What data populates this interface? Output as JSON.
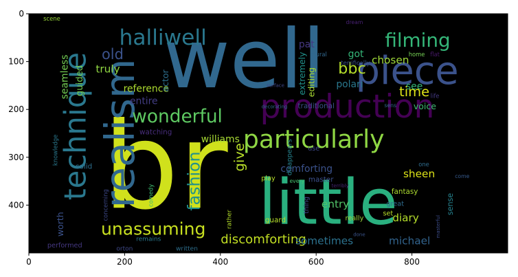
{
  "chart_data": {
    "type": "image",
    "render": "wordcloud",
    "background_color": "#000000",
    "x_range": [
      0,
      1000
    ],
    "y_range": [
      0,
      500
    ],
    "x_ticks": [
      0,
      200,
      400,
      600,
      800
    ],
    "y_ticks": [
      0,
      100,
      200,
      300,
      400
    ],
    "x_tick_labels": [
      "0",
      "200",
      "400",
      "600",
      "800"
    ],
    "y_tick_labels": [
      "0",
      "100",
      "200",
      "300",
      "400"
    ],
    "words": [
      {
        "text": "well",
        "x": 450,
        "y": 95,
        "size": 170,
        "color": "#31688e",
        "rotate": 0
      },
      {
        "text": "br",
        "x": 285,
        "y": 320,
        "size": 250,
        "color": "#d0e11c",
        "rotate": 0
      },
      {
        "text": "little",
        "x": 625,
        "y": 395,
        "size": 130,
        "color": "#2ab07f",
        "rotate": 0
      },
      {
        "text": "production",
        "x": 665,
        "y": 195,
        "size": 68,
        "color": "#440154",
        "rotate": 0
      },
      {
        "text": "piece",
        "x": 790,
        "y": 120,
        "size": 80,
        "color": "#3b528b",
        "rotate": 0
      },
      {
        "text": "particularly",
        "x": 595,
        "y": 262,
        "size": 52,
        "color": "#8fd744",
        "rotate": 0
      },
      {
        "text": "realism",
        "x": 190,
        "y": 250,
        "size": 85,
        "color": "#31688e",
        "rotate": -90
      },
      {
        "text": "technique",
        "x": 98,
        "y": 235,
        "size": 62,
        "color": "#2a788e",
        "rotate": -90
      },
      {
        "text": "halliwell",
        "x": 280,
        "y": 50,
        "size": 45,
        "color": "#2a788e",
        "rotate": 0
      },
      {
        "text": "filming",
        "x": 812,
        "y": 55,
        "size": 40,
        "color": "#35b779",
        "rotate": 0
      },
      {
        "text": "wonderful",
        "x": 310,
        "y": 215,
        "size": 38,
        "color": "#5ec962",
        "rotate": 0
      },
      {
        "text": "unassuming",
        "x": 260,
        "y": 450,
        "size": 36,
        "color": "#c8e020",
        "rotate": 0
      },
      {
        "text": "discomforting",
        "x": 490,
        "y": 472,
        "size": 26,
        "color": "#c2df23",
        "rotate": 0
      },
      {
        "text": "fashion",
        "x": 345,
        "y": 350,
        "size": 34,
        "color": "#21918c",
        "rotate": -90
      },
      {
        "text": "old",
        "x": 175,
        "y": 85,
        "size": 30,
        "color": "#3b528b",
        "rotate": 0
      },
      {
        "text": "bbc",
        "x": 675,
        "y": 115,
        "size": 32,
        "color": "#b5de2b",
        "rotate": 0
      },
      {
        "text": "time",
        "x": 805,
        "y": 163,
        "size": 28,
        "color": "#dde318",
        "rotate": 0
      },
      {
        "text": "chosen",
        "x": 755,
        "y": 97,
        "size": 22,
        "color": "#a0da39",
        "rotate": 0
      },
      {
        "text": "reference",
        "x": 245,
        "y": 157,
        "size": 20,
        "color": "#addc30",
        "rotate": 0
      },
      {
        "text": "truly",
        "x": 165,
        "y": 116,
        "size": 22,
        "color": "#90d743",
        "rotate": 0
      },
      {
        "text": "guided",
        "x": 107,
        "y": 140,
        "size": 19,
        "color": "#75d054",
        "rotate": -90
      },
      {
        "text": "seamless",
        "x": 75,
        "y": 132,
        "size": 20,
        "color": "#75d054",
        "rotate": -90
      },
      {
        "text": "actor",
        "x": 285,
        "y": 140,
        "size": 18,
        "color": "#2e6f8e",
        "rotate": -90
      },
      {
        "text": "entire",
        "x": 240,
        "y": 183,
        "size": 20,
        "color": "#433e85",
        "rotate": 0
      },
      {
        "text": "williams",
        "x": 400,
        "y": 263,
        "size": 20,
        "color": "#a8db34",
        "rotate": 0
      },
      {
        "text": "watching",
        "x": 265,
        "y": 248,
        "size": 15,
        "color": "#472d7b",
        "rotate": 0
      },
      {
        "text": "give",
        "x": 440,
        "y": 300,
        "size": 28,
        "color": "#b8de29",
        "rotate": -90
      },
      {
        "text": "comforting",
        "x": 580,
        "y": 325,
        "size": 20,
        "color": "#3b528b",
        "rotate": 0
      },
      {
        "text": "sheen",
        "x": 815,
        "y": 335,
        "size": 22,
        "color": "#dde318",
        "rotate": 0
      },
      {
        "text": "sense",
        "x": 880,
        "y": 398,
        "size": 16,
        "color": "#26828e",
        "rotate": -90
      },
      {
        "text": "fantasy",
        "x": 785,
        "y": 372,
        "size": 15,
        "color": "#addc30",
        "rotate": 0
      },
      {
        "text": "entry",
        "x": 640,
        "y": 398,
        "size": 22,
        "color": "#52c569",
        "rotate": 0
      },
      {
        "text": "diary",
        "x": 787,
        "y": 427,
        "size": 22,
        "color": "#b5de2b",
        "rotate": 0
      },
      {
        "text": "sometimes",
        "x": 617,
        "y": 475,
        "size": 22,
        "color": "#2c728e",
        "rotate": 0
      },
      {
        "text": "michael",
        "x": 795,
        "y": 475,
        "size": 22,
        "color": "#32648e",
        "rotate": 0
      },
      {
        "text": "voice",
        "x": 827,
        "y": 193,
        "size": 18,
        "color": "#3fbc73",
        "rotate": 0
      },
      {
        "text": "see",
        "x": 805,
        "y": 152,
        "size": 20,
        "color": "#35b779",
        "rotate": 0
      },
      {
        "text": "polari",
        "x": 670,
        "y": 148,
        "size": 20,
        "color": "#2a788e",
        "rotate": 0
      },
      {
        "text": "got",
        "x": 683,
        "y": 85,
        "size": 20,
        "color": "#35b779",
        "rotate": 0
      },
      {
        "text": "pat",
        "x": 580,
        "y": 65,
        "size": 20,
        "color": "#453882",
        "rotate": 0
      },
      {
        "text": "extremely",
        "x": 570,
        "y": 125,
        "size": 18,
        "color": "#21918c",
        "rotate": -90
      },
      {
        "text": "editing",
        "x": 590,
        "y": 143,
        "size": 18,
        "color": "#aadc32",
        "rotate": -90
      },
      {
        "text": "mural",
        "x": 605,
        "y": 85,
        "size": 12,
        "color": "#31688e",
        "rotate": 0
      },
      {
        "text": "terrifically",
        "x": 682,
        "y": 103,
        "size": 12,
        "color": "#3b528b",
        "rotate": 0
      },
      {
        "text": "home",
        "x": 810,
        "y": 85,
        "size": 12,
        "color": "#75d054",
        "rotate": 0
      },
      {
        "text": "flat",
        "x": 848,
        "y": 85,
        "size": 12,
        "color": "#48186a",
        "rotate": 0
      },
      {
        "text": "dream",
        "x": 680,
        "y": 18,
        "size": 11,
        "color": "#482173",
        "rotate": 0
      },
      {
        "text": "scene",
        "x": 48,
        "y": 10,
        "size": 12,
        "color": "#9bd93c",
        "rotate": 0
      },
      {
        "text": "surface",
        "x": 515,
        "y": 150,
        "size": 10,
        "color": "#3f4788",
        "rotate": 0
      },
      {
        "text": "decorating",
        "x": 513,
        "y": 195,
        "size": 10,
        "color": "#31688e",
        "rotate": 0
      },
      {
        "text": "traditional",
        "x": 600,
        "y": 193,
        "size": 15,
        "color": "#3b528b",
        "rotate": 0
      },
      {
        "text": "sens",
        "x": 755,
        "y": 192,
        "size": 11,
        "color": "#31688e",
        "rotate": 0
      },
      {
        "text": "life",
        "x": 848,
        "y": 172,
        "size": 12,
        "color": "#443983",
        "rotate": 0
      },
      {
        "text": "disappears",
        "x": 545,
        "y": 300,
        "size": 14,
        "color": "#26828e",
        "rotate": -90
      },
      {
        "text": "use",
        "x": 595,
        "y": 282,
        "size": 14,
        "color": "#3e4989",
        "rotate": 0
      },
      {
        "text": "one",
        "x": 825,
        "y": 315,
        "size": 12,
        "color": "#2f6c8e",
        "rotate": 0
      },
      {
        "text": "come",
        "x": 905,
        "y": 340,
        "size": 11,
        "color": "#375a8c",
        "rotate": 0
      },
      {
        "text": "master",
        "x": 610,
        "y": 347,
        "size": 15,
        "color": "#3c508b",
        "rotate": 0
      },
      {
        "text": "every",
        "x": 560,
        "y": 350,
        "size": 11,
        "color": "#46c06f",
        "rotate": 0
      },
      {
        "text": "terribly",
        "x": 650,
        "y": 360,
        "size": 10,
        "color": "#482677",
        "rotate": 0
      },
      {
        "text": "great",
        "x": 765,
        "y": 398,
        "size": 14,
        "color": "#2f6c8e",
        "rotate": 0
      },
      {
        "text": "set",
        "x": 750,
        "y": 418,
        "size": 14,
        "color": "#b8de29",
        "rotate": 0
      },
      {
        "text": "play",
        "x": 500,
        "y": 345,
        "size": 14,
        "color": "#b8de29",
        "rotate": 0
      },
      {
        "text": "thing",
        "x": 580,
        "y": 400,
        "size": 14,
        "color": "#3e4989",
        "rotate": -90
      },
      {
        "text": "really",
        "x": 680,
        "y": 428,
        "size": 14,
        "color": "#9fda3a",
        "rotate": 0
      },
      {
        "text": "masterful",
        "x": 855,
        "y": 445,
        "size": 10,
        "color": "#3d4d8a",
        "rotate": -90
      },
      {
        "text": "done",
        "x": 690,
        "y": 462,
        "size": 10,
        "color": "#3a548c",
        "rotate": 0
      },
      {
        "text": "guard",
        "x": 515,
        "y": 432,
        "size": 15,
        "color": "#b5de2b",
        "rotate": 0
      },
      {
        "text": "rather",
        "x": 420,
        "y": 430,
        "size": 13,
        "color": "#b5de2b",
        "rotate": -90
      },
      {
        "text": "remains",
        "x": 250,
        "y": 472,
        "size": 13,
        "color": "#2a788e",
        "rotate": 0
      },
      {
        "text": "written",
        "x": 330,
        "y": 492,
        "size": 13,
        "color": "#2e6f8e",
        "rotate": 0
      },
      {
        "text": "orton",
        "x": 200,
        "y": 492,
        "size": 13,
        "color": "#3e4989",
        "rotate": 0
      },
      {
        "text": "performed",
        "x": 75,
        "y": 485,
        "size": 14,
        "color": "#453882",
        "rotate": 0
      },
      {
        "text": "worth",
        "x": 65,
        "y": 440,
        "size": 18,
        "color": "#3b528b",
        "rotate": -90
      },
      {
        "text": "comedy",
        "x": 255,
        "y": 380,
        "size": 12,
        "color": "#3fbc73",
        "rotate": -90
      },
      {
        "text": "concerning",
        "x": 160,
        "y": 400,
        "size": 12,
        "color": "#3e4989",
        "rotate": -90
      },
      {
        "text": "solid",
        "x": 115,
        "y": 320,
        "size": 15,
        "color": "#2e6f8e",
        "rotate": 0
      },
      {
        "text": "knowledge",
        "x": 55,
        "y": 285,
        "size": 12,
        "color": "#2a788e",
        "rotate": -90
      }
    ]
  }
}
